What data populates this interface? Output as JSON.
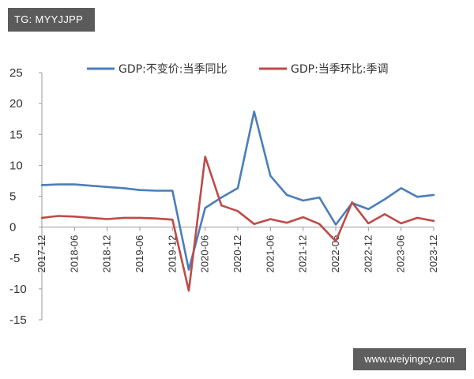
{
  "overlay": {
    "tag_text": "TG: MYYJJPP",
    "watermark_text": "www.weiyingcy.com"
  },
  "chart_data": {
    "type": "line",
    "title": "",
    "xlabel": "",
    "ylabel": "",
    "ylim": [
      -15,
      25
    ],
    "yticks": [
      25,
      20,
      15,
      10,
      5,
      0,
      -5,
      -10,
      -15
    ],
    "xtick_labels": [
      "2017-12",
      "2018-06",
      "2018-12",
      "2019-06",
      "2019-12",
      "2020-06",
      "2020-12",
      "2021-06",
      "2021-12",
      "2022-06",
      "2022-12",
      "2023-06",
      "2023-12"
    ],
    "legend_position": "top",
    "grid": false,
    "x": [
      "2017-12",
      "2018-03",
      "2018-06",
      "2018-09",
      "2018-12",
      "2019-03",
      "2019-06",
      "2019-09",
      "2019-12",
      "2020-03",
      "2020-06",
      "2020-09",
      "2020-12",
      "2021-03",
      "2021-06",
      "2021-09",
      "2021-12",
      "2022-03",
      "2022-06",
      "2022-09",
      "2022-12",
      "2023-03",
      "2023-06",
      "2023-09",
      "2023-12"
    ],
    "series": [
      {
        "name": "GDP:不变价:当季同比",
        "color": "#4a7ebb",
        "values": [
          6.8,
          6.9,
          6.9,
          6.7,
          6.5,
          6.3,
          6.0,
          5.9,
          5.9,
          -6.9,
          3.1,
          4.8,
          6.3,
          18.7,
          8.3,
          5.2,
          4.3,
          4.8,
          0.4,
          3.9,
          2.9,
          4.5,
          6.3,
          4.9,
          5.2
        ]
      },
      {
        "name": "GDP:当季环比:季调",
        "color": "#be4b48",
        "values": [
          1.5,
          1.8,
          1.7,
          1.5,
          1.3,
          1.5,
          1.5,
          1.4,
          1.2,
          -10.3,
          11.4,
          3.5,
          2.6,
          0.5,
          1.3,
          0.7,
          1.6,
          0.5,
          -2.3,
          4.0,
          0.6,
          2.1,
          0.6,
          1.5,
          1.0
        ]
      }
    ]
  }
}
